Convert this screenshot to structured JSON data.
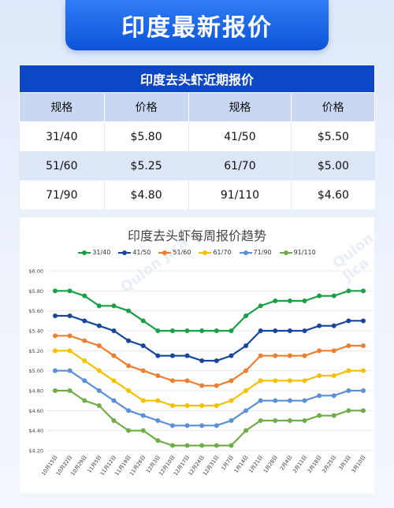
{
  "header": {
    "title": "印度最新报价"
  },
  "table": {
    "title": "印度去头虾近期报价",
    "headers": [
      "规格",
      "价格",
      "规格",
      "价格"
    ],
    "rows": [
      [
        "31/40",
        "$5.80",
        "41/50",
        "$5.50"
      ],
      [
        "51/60",
        "$5.25",
        "61/70",
        "$5.00"
      ],
      [
        "71/90",
        "$4.80",
        "91/110",
        "$4.60"
      ]
    ]
  },
  "watermark": "Qulon Jica",
  "chart_data": {
    "type": "line",
    "title": "印度去头虾每周报价趋势",
    "xlabel": "",
    "ylabel": "",
    "ylim": [
      4.2,
      6.0
    ],
    "yticks": [
      "$4.20",
      "$4.40",
      "$4.60",
      "$4.80",
      "$5.00",
      "$5.20",
      "$5.40",
      "$5.60",
      "$5.80",
      "$6.00"
    ],
    "grid": true,
    "legend": "top",
    "x": [
      "10月15日",
      "10月22日",
      "10月29日",
      "11月5日",
      "11月12日",
      "11月19日",
      "11月26日",
      "12月3日",
      "12月10日",
      "12月17日",
      "12月24日",
      "12月31日",
      "1月7日",
      "1月14日",
      "1月21日",
      "1月28日",
      "2月4日",
      "2月11日",
      "2月18日",
      "2月25日",
      "3月3日",
      "3月10日"
    ],
    "series": [
      {
        "name": "31/40",
        "color": "#1a9f46",
        "values": [
          5.8,
          5.8,
          5.75,
          5.65,
          5.65,
          5.6,
          5.5,
          5.4,
          5.4,
          5.4,
          5.4,
          5.4,
          5.4,
          5.55,
          5.65,
          5.7,
          5.7,
          5.7,
          5.75,
          5.75,
          5.8,
          5.8
        ]
      },
      {
        "name": "41/50",
        "color": "#17479c",
        "values": [
          5.55,
          5.55,
          5.5,
          5.45,
          5.4,
          5.3,
          5.25,
          5.15,
          5.15,
          5.15,
          5.1,
          5.1,
          5.15,
          5.25,
          5.4,
          5.4,
          5.4,
          5.4,
          5.45,
          5.45,
          5.5,
          5.5
        ]
      },
      {
        "name": "51/60",
        "color": "#ed7d31",
        "values": [
          5.35,
          5.35,
          5.3,
          5.25,
          5.15,
          5.05,
          5.0,
          4.95,
          4.9,
          4.9,
          4.85,
          4.85,
          4.9,
          5.0,
          5.15,
          5.15,
          5.15,
          5.15,
          5.2,
          5.2,
          5.25,
          5.25
        ]
      },
      {
        "name": "61/70",
        "color": "#f5c000",
        "values": [
          5.2,
          5.2,
          5.1,
          5.0,
          4.9,
          4.8,
          4.7,
          4.7,
          4.65,
          4.65,
          4.65,
          4.65,
          4.7,
          4.8,
          4.9,
          4.9,
          4.9,
          4.9,
          4.95,
          4.95,
          5.0,
          5.0
        ]
      },
      {
        "name": "71/90",
        "color": "#5b8fd8",
        "values": [
          5.0,
          5.0,
          4.9,
          4.8,
          4.7,
          4.6,
          4.55,
          4.5,
          4.45,
          4.45,
          4.45,
          4.45,
          4.5,
          4.6,
          4.7,
          4.7,
          4.7,
          4.7,
          4.75,
          4.75,
          4.8,
          4.8
        ]
      },
      {
        "name": "91/110",
        "color": "#70ad47",
        "values": [
          4.8,
          4.8,
          4.7,
          4.65,
          4.5,
          4.4,
          4.4,
          4.3,
          4.25,
          4.25,
          4.25,
          4.25,
          4.25,
          4.4,
          4.5,
          4.5,
          4.5,
          4.5,
          4.55,
          4.55,
          4.6,
          4.6
        ]
      }
    ]
  }
}
